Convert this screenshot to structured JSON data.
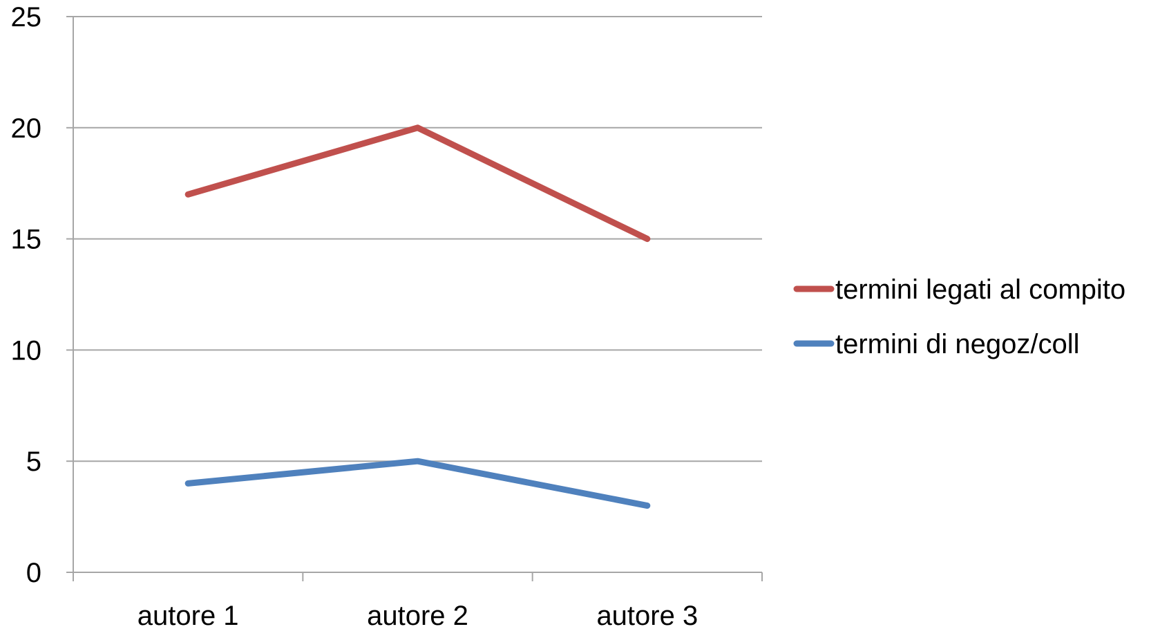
{
  "chart_data": {
    "type": "line",
    "title": "",
    "xlabel": "",
    "ylabel": "",
    "categories": [
      "autore 1",
      "autore 2",
      "autore 3"
    ],
    "ylim": [
      0,
      25
    ],
    "yticks": [
      "0",
      "5",
      "10",
      "15",
      "20",
      "25"
    ],
    "grid": true,
    "legend_position": "right",
    "series": [
      {
        "name": "termini legati al compito",
        "values": [
          17,
          20,
          15
        ],
        "color": "#C0504D"
      },
      {
        "name": "termini di negoz/coll",
        "values": [
          4,
          5,
          3
        ],
        "color": "#4F81BD"
      }
    ]
  }
}
